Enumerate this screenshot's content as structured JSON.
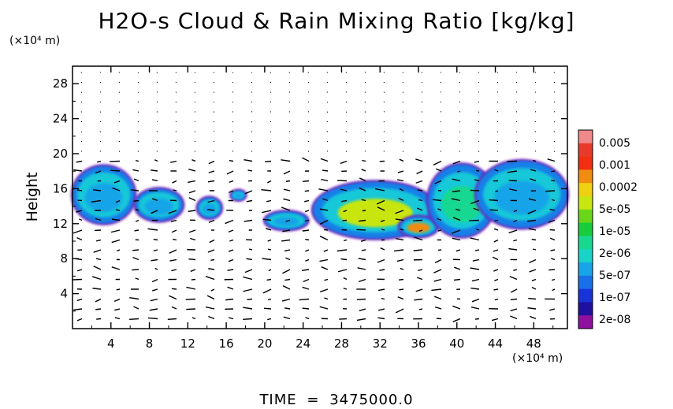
{
  "chart_data": {
    "type": "heatmap",
    "title": "H2O-s Cloud & Rain Mixing Ratio [kg/kg]",
    "xlabel": "",
    "ylabel": "Height",
    "x_unit": "(×10⁴ m)",
    "y_unit": "(×10⁴ m)",
    "xlim": [
      0,
      51.5
    ],
    "ylim": [
      0,
      30
    ],
    "x_ticks": [
      4,
      8,
      12,
      16,
      20,
      24,
      28,
      32,
      36,
      40,
      44,
      48
    ],
    "y_ticks": [
      4,
      8,
      12,
      16,
      20,
      24,
      28
    ],
    "colorbar": {
      "labels": [
        "0.005",
        "0.001",
        "0.0002",
        "5e-05",
        "1e-05",
        "2e-06",
        "5e-07",
        "1e-07",
        "2e-08"
      ],
      "colors": [
        "#f08a8a",
        "#e83a2a",
        "#f03010",
        "#f08c10",
        "#f0d010",
        "#c8e610",
        "#6ad618",
        "#18cc3c",
        "#18d890",
        "#18d4c8",
        "#18a4e8",
        "#1870e8",
        "#1834d8",
        "#2010a0",
        "#9010a0"
      ]
    },
    "cloud_regions": [
      {
        "x": [
          0,
          6.5
        ],
        "y": [
          12,
          18.6
        ],
        "level": "5e-07"
      },
      {
        "x": [
          6.5,
          11.5
        ],
        "y": [
          12.3,
          16
        ],
        "level": "5e-07"
      },
      {
        "x": [
          13,
          15.5
        ],
        "y": [
          12.6,
          15
        ],
        "level": "5e-07"
      },
      {
        "x": [
          16.5,
          18
        ],
        "y": [
          14.7,
          15.8
        ],
        "level": "5e-07"
      },
      {
        "x": [
          20,
          24.5
        ],
        "y": [
          11.3,
          13.4
        ],
        "level": "5e-07"
      },
      {
        "x": [
          25,
          38
        ],
        "y": [
          10.3,
          16.8
        ],
        "level": "5e-05"
      },
      {
        "x": [
          34,
          38
        ],
        "y": [
          10.5,
          12.8
        ],
        "level": "0.0002"
      },
      {
        "x": [
          37,
          44
        ],
        "y": [
          10.5,
          18.8
        ],
        "level": "5e-06"
      },
      {
        "x": [
          42,
          51.5
        ],
        "y": [
          11.5,
          19.2
        ],
        "level": "5e-07"
      }
    ]
  },
  "time": {
    "label": "TIME",
    "equals": "=",
    "value": "3475000.0"
  }
}
